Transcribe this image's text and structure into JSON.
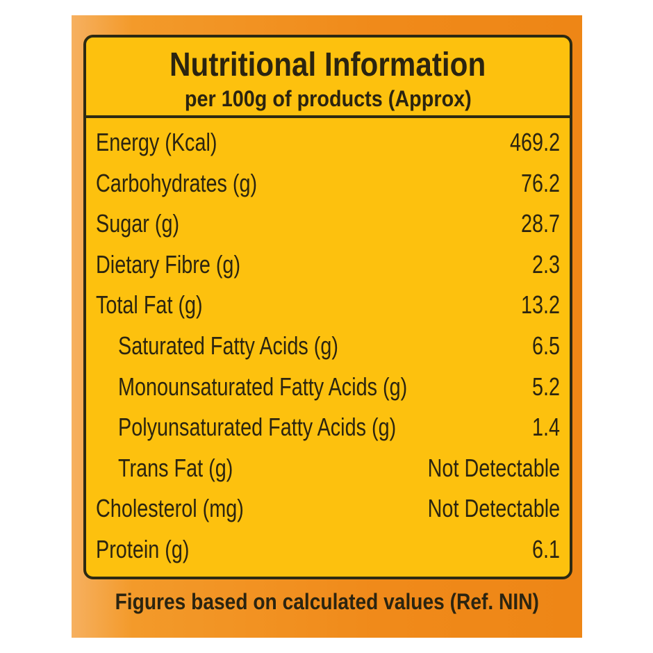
{
  "header": {
    "title": "Nutritional Information",
    "subtitle": "per 100g of products  (Approx)"
  },
  "rows": [
    {
      "label": "Energy (Kcal)",
      "value": 469.2
    },
    {
      "label": "Carbohydrates (g)",
      "value": 76.2
    },
    {
      "label": "Sugar (g)",
      "value": 28.7
    },
    {
      "label": "Dietary Fibre (g)",
      "value": 2.3
    },
    {
      "label": "Total Fat (g)",
      "value": 13.2,
      "subrows": [
        {
          "label": "Saturated Fatty Acids (g)",
          "value": 6.5
        },
        {
          "label": "Monounsaturated Fatty Acids (g)",
          "value": 5.2
        },
        {
          "label": "Polyunsaturated Fatty Acids (g)",
          "value": 1.4
        },
        {
          "label": "Trans Fat (g)",
          "value": "Not Detectable"
        }
      ]
    },
    {
      "label": "Cholesterol (mg)",
      "value": "Not Detectable"
    },
    {
      "label": "Protein (g)",
      "value": 6.1
    }
  ],
  "footer": "Figures based on calculated values (Ref. NIN)"
}
